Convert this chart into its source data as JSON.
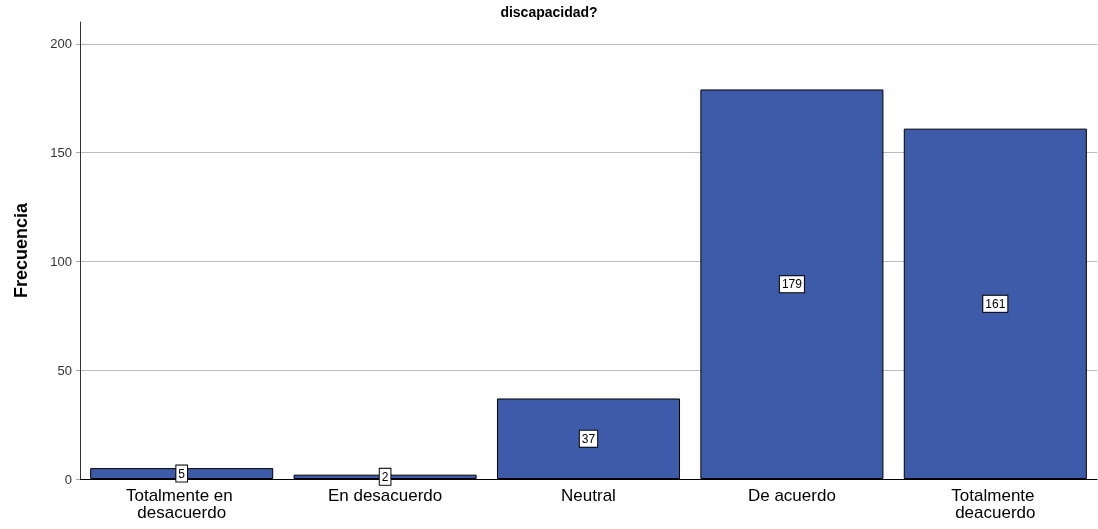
{
  "chart_data": {
    "type": "bar",
    "title": "discapacidad?",
    "ylabel": "Frecuencia",
    "categories": [
      "Totalmente en desacuerdo",
      "En desacuerdo",
      "Neutral",
      "De acuerdo",
      "Totalmente deacuerdo"
    ],
    "values": [
      5,
      2,
      37,
      179,
      161
    ],
    "color": "#3e5ba9",
    "ylim": [
      0,
      210
    ],
    "yticks": [
      0,
      50,
      100,
      150,
      200
    ],
    "grid": "y",
    "data_labels": true
  }
}
